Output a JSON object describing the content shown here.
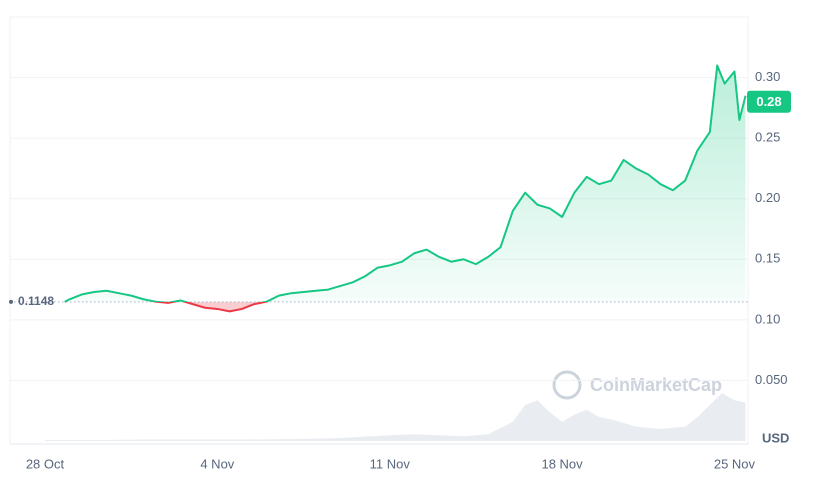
{
  "chart_data": {
    "type": "area",
    "x": [
      0.8,
      1,
      1.5,
      2,
      2.5,
      3,
      3.5,
      4,
      4.5,
      5,
      5.5,
      6,
      6.5,
      7,
      7.5,
      8,
      8.5,
      9,
      9.5,
      10,
      10.5,
      11,
      11.5,
      12,
      12.5,
      13,
      13.5,
      14,
      14.5,
      15,
      15.5,
      16,
      16.5,
      17,
      17.5,
      18,
      18.5,
      19,
      19.5,
      20,
      20.5,
      21,
      21.5,
      22,
      22.5,
      23,
      23.5,
      24,
      24.5,
      25,
      25.5,
      26,
      26.5,
      27,
      27.3,
      27.6,
      28,
      28.2,
      28.45
    ],
    "values": [
      0.1148,
      0.117,
      0.121,
      0.123,
      0.124,
      0.122,
      0.12,
      0.117,
      0.115,
      0.114,
      0.116,
      0.113,
      0.11,
      0.109,
      0.107,
      0.109,
      0.113,
      0.115,
      0.12,
      0.122,
      0.123,
      0.124,
      0.125,
      0.128,
      0.131,
      0.136,
      0.143,
      0.145,
      0.148,
      0.155,
      0.158,
      0.152,
      0.148,
      0.15,
      0.146,
      0.152,
      0.16,
      0.19,
      0.205,
      0.195,
      0.192,
      0.185,
      0.205,
      0.218,
      0.212,
      0.215,
      0.232,
      0.225,
      0.22,
      0.212,
      0.207,
      0.215,
      0.24,
      0.255,
      0.31,
      0.295,
      0.305,
      0.265,
      0.285
    ],
    "color": "#16c784",
    "down_color": "#ea3943",
    "baseline": 0.1148,
    "baseline_label": "0.1148",
    "current_price": 0.28,
    "current_label": "0.28",
    "xlim": [
      -1.42,
      28.55
    ],
    "xticks": [
      {
        "value": 0,
        "label": "28 Oct"
      },
      {
        "value": 7,
        "label": "4 Nov"
      },
      {
        "value": 14,
        "label": "11 Nov"
      },
      {
        "value": 21,
        "label": "18 Nov"
      },
      {
        "value": 28,
        "label": "25 Nov"
      }
    ],
    "ylim": [
      0,
      0.35
    ],
    "yticks": [
      {
        "value": 0.05,
        "label": "0.050"
      },
      {
        "value": 0.1,
        "label": "0.10"
      },
      0.15,
      {
        "value": 0.2,
        "label": "0.20"
      },
      0.25,
      {
        "value": 0.3,
        "label": "0.30"
      }
    ],
    "grid": true,
    "unit": "USD",
    "watermark": "CoinMarketCap",
    "volume": {
      "x": [
        0,
        2,
        4,
        6,
        8,
        10,
        12,
        13,
        14,
        15,
        16,
        17,
        18,
        19,
        19.5,
        20,
        20.5,
        21,
        21.5,
        22,
        22.5,
        23,
        24,
        25,
        26,
        26.5,
        27,
        27.5,
        28,
        28.45
      ],
      "values": [
        2,
        2,
        3,
        3,
        3,
        4,
        6,
        9,
        12,
        14,
        12,
        10,
        14,
        40,
        75,
        85,
        60,
        40,
        55,
        65,
        50,
        45,
        30,
        25,
        30,
        50,
        75,
        100,
        85,
        80
      ],
      "ylim": [
        0,
        100
      ],
      "color": "#e3e7ee"
    }
  }
}
